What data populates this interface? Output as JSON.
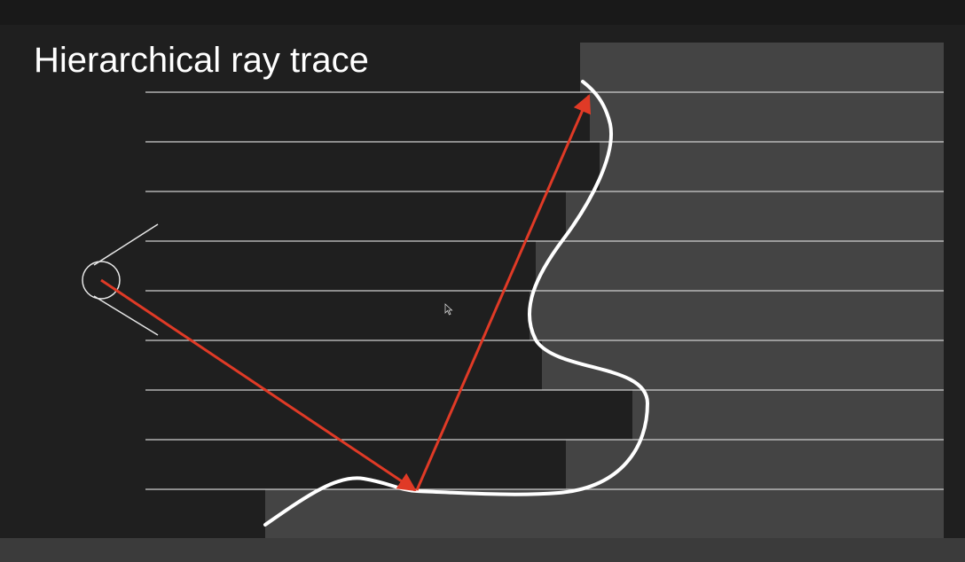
{
  "slide": {
    "title": "Hierarchical ray trace"
  },
  "colors": {
    "background": "#1f1f1f",
    "depth_block": "#444444",
    "grid_line": "#cfcfcf",
    "surface_curve": "#ffffff",
    "ray": "#e03a26",
    "camera": "#e6e6e6"
  },
  "icons": {
    "camera": "eye-camera-icon",
    "cursor": "mouse-pointer-icon"
  }
}
